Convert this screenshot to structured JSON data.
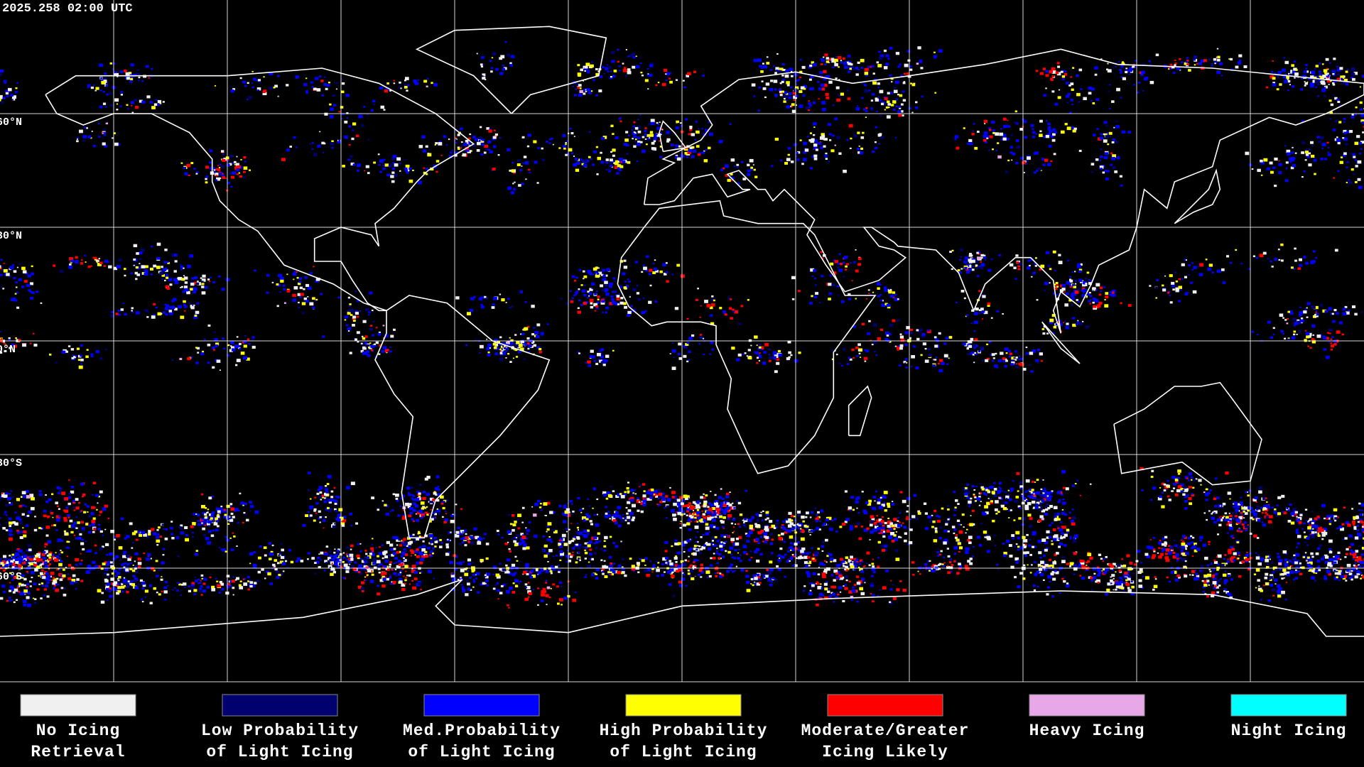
{
  "header": {
    "title": "2025.258 02:00 UTC"
  },
  "map": {
    "latitude_labels": [
      "60°N",
      "30°N",
      "0°N",
      "30°S",
      "60°S"
    ]
  },
  "legend": {
    "items": [
      {
        "label": [
          "No Icing",
          "Retrieval"
        ],
        "color": "#f0f0f0"
      },
      {
        "label": [
          "Low Probability",
          "of Light Icing"
        ],
        "color": "#00006e"
      },
      {
        "label": [
          "Med.Probability",
          "of Light Icing"
        ],
        "color": "#0000ff"
      },
      {
        "label": [
          "High Probability",
          "of Light Icing"
        ],
        "color": "#ffff00"
      },
      {
        "label": [
          "Moderate/Greater",
          "Icing Likely"
        ],
        "color": "#ff0000"
      },
      {
        "label": [
          "Heavy Icing"
        ],
        "color": "#e8a8e8"
      },
      {
        "label": [
          "Night Icing"
        ],
        "color": "#00ffff"
      }
    ]
  }
}
